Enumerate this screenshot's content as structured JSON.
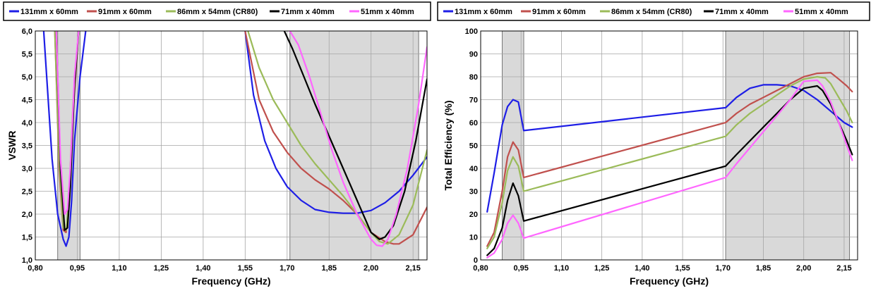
{
  "colors": {
    "s131": "#1e1ee6",
    "s91": "#c0504d",
    "s86": "#9bbb59",
    "s71": "#000000",
    "s51": "#ff66ff",
    "band": "#d9d9d9",
    "grid": "#a6a6a6"
  },
  "chart_data": [
    {
      "type": "line",
      "xlabel": "Frequency (GHz)",
      "ylabel": "VSWR",
      "xlim": [
        0.8,
        2.2
      ],
      "ylim": [
        1.0,
        6.0
      ],
      "x_ticks": [
        0.8,
        0.95,
        1.1,
        1.25,
        1.4,
        1.55,
        1.7,
        1.85,
        2.0,
        2.15
      ],
      "x_tick_labels": [
        "0,80",
        "0,95",
        "1,10",
        "1,25",
        "1,40",
        "1,55",
        "1,70",
        "1,85",
        "2,00",
        "2,15"
      ],
      "y_ticks": [
        1.0,
        1.5,
        2.0,
        2.5,
        3.0,
        3.5,
        4.0,
        4.5,
        5.0,
        5.5,
        6.0
      ],
      "y_tick_labels": [
        "1,0",
        "1,5",
        "2,0",
        "2,5",
        "3,0",
        "3,5",
        "4,0",
        "4,5",
        "5,0",
        "5,5",
        "6,0"
      ],
      "grid": true,
      "legend_position": "top",
      "shaded_bands": [
        [
          0.88,
          0.96
        ],
        [
          1.71,
          2.17
        ]
      ],
      "series": [
        {
          "name": "131mm x 60mm",
          "color_key": "s131",
          "x": [
            0.83,
            0.86,
            0.88,
            0.9,
            0.91,
            0.92,
            0.93,
            0.94,
            0.96,
            0.98
          ],
          "y": [
            6.0,
            3.2,
            2.0,
            1.45,
            1.3,
            1.5,
            2.3,
            3.6,
            5.0,
            6.0
          ]
        },
        {
          "name": "91mm x 60mm",
          "color_key": "s91",
          "x": [
            0.87,
            0.885,
            0.9,
            0.91,
            0.92,
            0.935,
            0.955
          ],
          "y": [
            6.0,
            3.0,
            1.65,
            1.6,
            2.2,
            4.2,
            6.0
          ]
        },
        {
          "name": "86mm x 54mm (CR80)",
          "color_key": "s86",
          "x": [
            0.87,
            0.885,
            0.9,
            0.91,
            0.92,
            0.935,
            0.955
          ],
          "y": [
            6.0,
            3.2,
            1.7,
            1.65,
            2.3,
            4.4,
            6.0
          ]
        },
        {
          "name": "71mm x 40mm",
          "color_key": "s71",
          "x": [
            0.875,
            0.89,
            0.905,
            0.915,
            0.925,
            0.94,
            0.955
          ],
          "y": [
            6.0,
            3.0,
            1.65,
            1.7,
            2.6,
            4.8,
            6.0
          ]
        },
        {
          "name": "51mm x 40mm",
          "color_key": "s51",
          "x": [
            0.875,
            0.89,
            0.905,
            0.915,
            0.925,
            0.94,
            0.955
          ],
          "y": [
            6.0,
            3.2,
            2.0,
            2.1,
            3.0,
            5.0,
            6.0
          ]
        },
        {
          "name": "131mm x 60mm",
          "color_key": "s131",
          "x": [
            1.55,
            1.58,
            1.62,
            1.66,
            1.7,
            1.75,
            1.8,
            1.85,
            1.9,
            1.95,
            2.0,
            2.05,
            2.1,
            2.15,
            2.2
          ],
          "y": [
            6.0,
            4.6,
            3.6,
            3.0,
            2.6,
            2.3,
            2.1,
            2.04,
            2.02,
            2.02,
            2.08,
            2.25,
            2.5,
            2.85,
            3.25
          ]
        },
        {
          "name": "91mm x 60mm",
          "color_key": "s91",
          "x": [
            1.55,
            1.6,
            1.65,
            1.7,
            1.75,
            1.8,
            1.85,
            1.9,
            1.95,
            2.0,
            2.05,
            2.08,
            2.1,
            2.15,
            2.2
          ],
          "y": [
            6.0,
            4.5,
            3.8,
            3.35,
            3.0,
            2.75,
            2.55,
            2.3,
            2.0,
            1.6,
            1.4,
            1.35,
            1.35,
            1.55,
            2.15
          ]
        },
        {
          "name": "86mm x 54mm (CR80)",
          "color_key": "s86",
          "x": [
            1.56,
            1.6,
            1.65,
            1.7,
            1.75,
            1.8,
            1.85,
            1.9,
            1.95,
            2.0,
            2.03,
            2.06,
            2.1,
            2.15,
            2.2
          ],
          "y": [
            6.0,
            5.2,
            4.5,
            4.0,
            3.5,
            3.1,
            2.75,
            2.4,
            2.0,
            1.6,
            1.4,
            1.35,
            1.55,
            2.2,
            3.4
          ]
        },
        {
          "name": "71mm x 40mm",
          "color_key": "s71",
          "x": [
            1.69,
            1.72,
            1.76,
            1.8,
            1.85,
            1.9,
            1.95,
            2.0,
            2.03,
            2.05,
            2.08,
            2.12,
            2.16,
            2.2
          ],
          "y": [
            6.0,
            5.6,
            5.0,
            4.4,
            3.7,
            3.0,
            2.3,
            1.6,
            1.45,
            1.5,
            1.75,
            2.5,
            3.6,
            4.95
          ]
        },
        {
          "name": "51mm x 40mm",
          "color_key": "s51",
          "x": [
            1.71,
            1.74,
            1.78,
            1.82,
            1.86,
            1.9,
            1.95,
            2.0,
            2.02,
            2.04,
            2.06,
            2.09,
            2.13,
            2.17,
            2.2
          ],
          "y": [
            6.0,
            5.7,
            5.0,
            4.2,
            3.4,
            2.7,
            2.0,
            1.45,
            1.32,
            1.3,
            1.45,
            2.0,
            3.0,
            4.4,
            5.65
          ]
        }
      ]
    },
    {
      "type": "line",
      "xlabel": "Frequency (GHz)",
      "ylabel": "Total  Efficiency (%)",
      "xlim": [
        0.8,
        2.2
      ],
      "ylim": [
        0,
        100
      ],
      "x_ticks": [
        0.8,
        0.95,
        1.1,
        1.25,
        1.4,
        1.55,
        1.7,
        1.85,
        2.0,
        2.15
      ],
      "x_tick_labels": [
        "0,80",
        "0,95",
        "1,10",
        "1,25",
        "1,40",
        "1,55",
        "1,70",
        "1,85",
        "2,00",
        "2,15"
      ],
      "y_ticks": [
        0,
        10,
        20,
        30,
        40,
        50,
        60,
        70,
        80,
        90,
        100
      ],
      "y_tick_labels": [
        "0",
        "10",
        "20",
        "30",
        "40",
        "50",
        "60",
        "70",
        "80",
        "90",
        "100"
      ],
      "grid": true,
      "legend_position": "top",
      "shaded_bands": [
        [
          0.88,
          0.96
        ],
        [
          1.71,
          2.17
        ]
      ],
      "series": [
        {
          "name": "131mm x 60mm",
          "color_key": "s131",
          "x": [
            0.824,
            0.85,
            0.88,
            0.9,
            0.92,
            0.94,
            0.96,
            1.71,
            1.75,
            1.8,
            1.85,
            1.9,
            1.95,
            2.0,
            2.05,
            2.1,
            2.15,
            2.18
          ],
          "y": [
            21,
            38,
            59,
            67,
            70,
            69,
            56.5,
            66.5,
            71,
            75,
            76.5,
            76.5,
            76,
            74,
            70,
            65,
            60,
            58
          ]
        },
        {
          "name": "91mm x 60mm",
          "color_key": "s91",
          "x": [
            0.824,
            0.85,
            0.88,
            0.9,
            0.92,
            0.94,
            0.96,
            1.71,
            1.75,
            1.8,
            1.85,
            1.9,
            1.95,
            2.0,
            2.05,
            2.1,
            2.13,
            2.16,
            2.18
          ],
          "y": [
            6,
            12,
            30,
            45,
            51.5,
            48,
            36,
            60,
            64,
            68,
            71,
            74,
            77,
            80,
            81.5,
            81.8,
            79,
            76,
            73.5
          ]
        },
        {
          "name": "86mm x 54mm (CR80)",
          "color_key": "s86",
          "x": [
            0.824,
            0.85,
            0.88,
            0.9,
            0.92,
            0.94,
            0.96,
            1.71,
            1.75,
            1.8,
            1.85,
            1.9,
            1.95,
            2.0,
            2.05,
            2.08,
            2.1,
            2.13,
            2.16,
            2.18
          ],
          "y": [
            5,
            10,
            25,
            39,
            45,
            41,
            30,
            54,
            59,
            64,
            68,
            72,
            76,
            79,
            80,
            79.5,
            77,
            71,
            65,
            60
          ]
        },
        {
          "name": "71mm x 40mm",
          "color_key": "s71",
          "x": [
            0.824,
            0.85,
            0.88,
            0.9,
            0.92,
            0.94,
            0.96,
            1.71,
            1.75,
            1.8,
            1.85,
            1.9,
            1.95,
            2.0,
            2.05,
            2.07,
            2.1,
            2.13,
            2.16,
            2.18
          ],
          "y": [
            2,
            5,
            14,
            26,
            33.5,
            28,
            17,
            41,
            46,
            52,
            58,
            64,
            70,
            75,
            76,
            74,
            68,
            60,
            52,
            46
          ]
        },
        {
          "name": "51mm x 40mm",
          "color_key": "s51",
          "x": [
            0.824,
            0.85,
            0.88,
            0.9,
            0.92,
            0.94,
            0.96,
            1.71,
            1.75,
            1.8,
            1.85,
            1.9,
            1.95,
            2.0,
            2.05,
            2.07,
            2.1,
            2.13,
            2.16,
            2.18
          ],
          "y": [
            1,
            3,
            9,
            16,
            19.5,
            16,
            9.5,
            36,
            42,
            49,
            56,
            63,
            70,
            78,
            78.5,
            76,
            69,
            60,
            50,
            43.5
          ]
        }
      ]
    }
  ]
}
